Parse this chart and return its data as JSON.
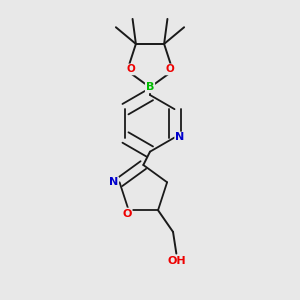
{
  "background_color": "#e8e8e8",
  "bond_color": "#1a1a1a",
  "atom_colors": {
    "B": "#00bb00",
    "O": "#ee0000",
    "N": "#0000cc",
    "C": "#1a1a1a"
  },
  "figsize": [
    3.0,
    3.0
  ],
  "dpi": 100,
  "xlim": [
    0.25,
    0.75
  ],
  "ylim": [
    0.05,
    0.95
  ]
}
